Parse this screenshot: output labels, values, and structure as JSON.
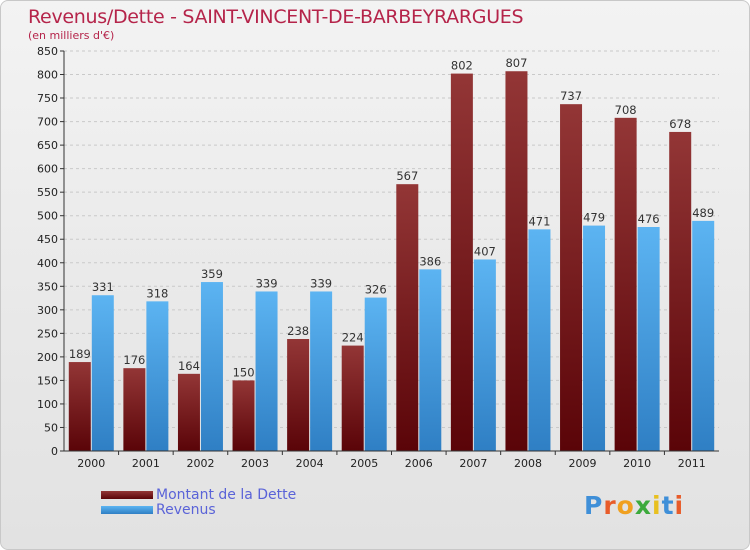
{
  "chart_data": {
    "type": "bar",
    "title": "Revenus/Dette - SAINT-VINCENT-DE-BARBEYRARGUES",
    "subtitle": "(en milliers d'€)",
    "categories": [
      "2000",
      "2001",
      "2002",
      "2003",
      "2004",
      "2005",
      "2006",
      "2007",
      "2008",
      "2009",
      "2010",
      "2011"
    ],
    "series": [
      {
        "name": "Montant de la Dette",
        "color": "#7a1418",
        "values": [
          189,
          176,
          164,
          150,
          238,
          224,
          567,
          802,
          807,
          737,
          708,
          678
        ]
      },
      {
        "name": "Revenus",
        "color": "#4aa4e8",
        "values": [
          331,
          318,
          359,
          339,
          339,
          326,
          386,
          407,
          471,
          479,
          476,
          489
        ]
      }
    ],
    "ylim": [
      0,
      850
    ],
    "yticks": [
      0,
      50,
      100,
      150,
      200,
      250,
      300,
      350,
      400,
      450,
      500,
      550,
      600,
      650,
      700,
      750,
      800,
      850
    ],
    "grid": true,
    "legend": "bottom-left"
  },
  "logo": {
    "text": "Proxiti"
  }
}
